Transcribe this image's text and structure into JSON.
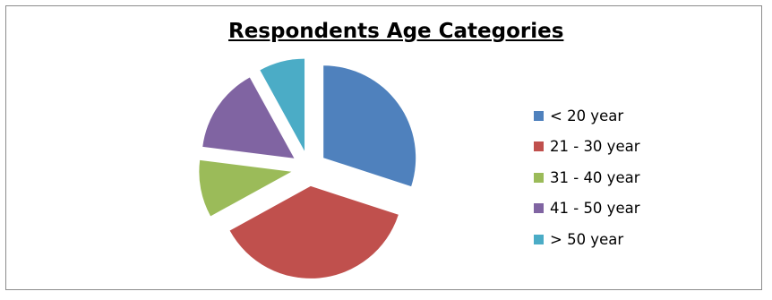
{
  "chart_data": {
    "type": "pie",
    "title": "Respondents Age Categories",
    "categories": [
      "< 20 year",
      "21 - 30 year",
      "31 - 40 year",
      "41 - 50 year",
      "> 50 year"
    ],
    "values": [
      30,
      37,
      10,
      15,
      8
    ],
    "colors": [
      "#4f81bd",
      "#c0504d",
      "#9bbb59",
      "#8064a2",
      "#4bacc6"
    ],
    "exploded": true,
    "legend_position": "right"
  }
}
